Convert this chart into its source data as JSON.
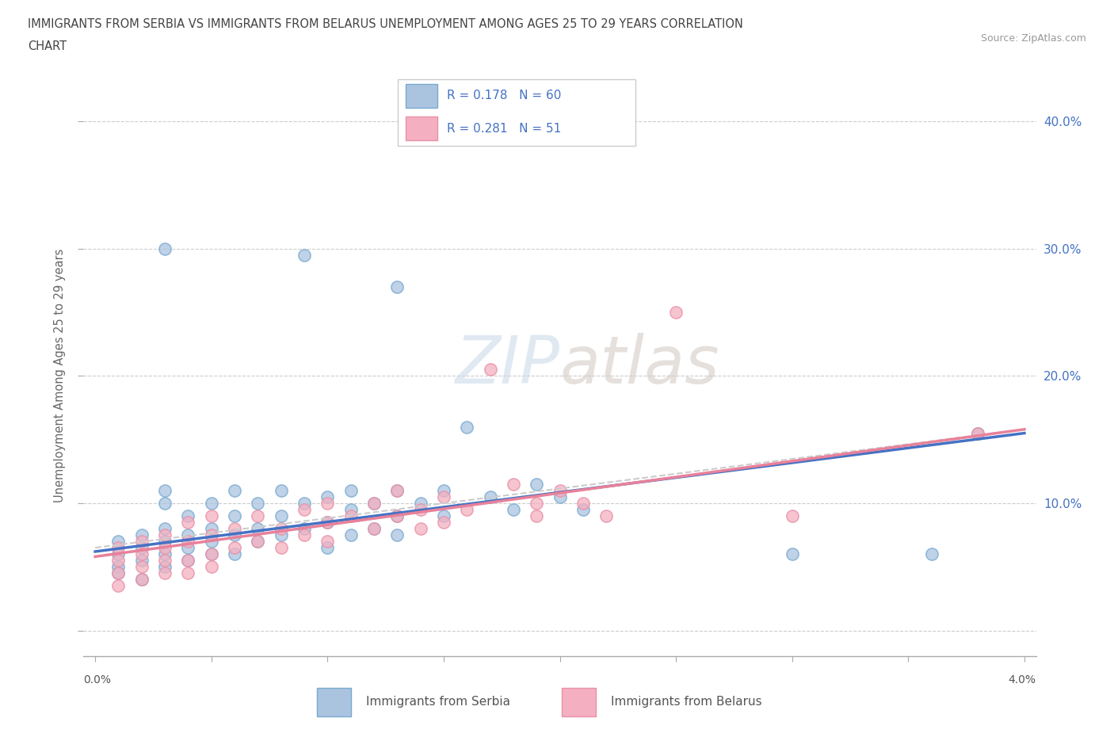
{
  "title_line1": "IMMIGRANTS FROM SERBIA VS IMMIGRANTS FROM BELARUS UNEMPLOYMENT AMONG AGES 25 TO 29 YEARS CORRELATION",
  "title_line2": "CHART",
  "source": "Source: ZipAtlas.com",
  "ylabel": "Unemployment Among Ages 25 to 29 years",
  "serbia_color": "#aac4e0",
  "serbia_edge": "#7aaad0",
  "belarus_color": "#f4b0c0",
  "belarus_edge": "#e890a8",
  "serbia_line_color": "#4472c4",
  "belarus_line_color": "#e8819a",
  "watermark_color": "#dde8f0",
  "serbia_points": [
    [
      0.001,
      0.05
    ],
    [
      0.001,
      0.06
    ],
    [
      0.001,
      0.07
    ],
    [
      0.001,
      0.045
    ],
    [
      0.002,
      0.055
    ],
    [
      0.002,
      0.065
    ],
    [
      0.002,
      0.075
    ],
    [
      0.002,
      0.04
    ],
    [
      0.003,
      0.06
    ],
    [
      0.003,
      0.07
    ],
    [
      0.003,
      0.08
    ],
    [
      0.003,
      0.05
    ],
    [
      0.003,
      0.11
    ],
    [
      0.003,
      0.1
    ],
    [
      0.004,
      0.065
    ],
    [
      0.004,
      0.075
    ],
    [
      0.004,
      0.055
    ],
    [
      0.004,
      0.09
    ],
    [
      0.005,
      0.08
    ],
    [
      0.005,
      0.06
    ],
    [
      0.005,
      0.1
    ],
    [
      0.005,
      0.07
    ],
    [
      0.006,
      0.09
    ],
    [
      0.006,
      0.075
    ],
    [
      0.006,
      0.11
    ],
    [
      0.006,
      0.06
    ],
    [
      0.007,
      0.1
    ],
    [
      0.007,
      0.08
    ],
    [
      0.007,
      0.07
    ],
    [
      0.008,
      0.09
    ],
    [
      0.008,
      0.11
    ],
    [
      0.008,
      0.075
    ],
    [
      0.009,
      0.1
    ],
    [
      0.009,
      0.08
    ],
    [
      0.01,
      0.105
    ],
    [
      0.01,
      0.085
    ],
    [
      0.01,
      0.065
    ],
    [
      0.011,
      0.095
    ],
    [
      0.011,
      0.11
    ],
    [
      0.011,
      0.075
    ],
    [
      0.012,
      0.1
    ],
    [
      0.012,
      0.08
    ],
    [
      0.013,
      0.11
    ],
    [
      0.013,
      0.09
    ],
    [
      0.013,
      0.075
    ],
    [
      0.014,
      0.1
    ],
    [
      0.015,
      0.11
    ],
    [
      0.015,
      0.09
    ],
    [
      0.016,
      0.16
    ],
    [
      0.017,
      0.105
    ],
    [
      0.018,
      0.095
    ],
    [
      0.019,
      0.115
    ],
    [
      0.02,
      0.105
    ],
    [
      0.021,
      0.095
    ],
    [
      0.003,
      0.3
    ],
    [
      0.009,
      0.295
    ],
    [
      0.013,
      0.27
    ],
    [
      0.038,
      0.155
    ],
    [
      0.03,
      0.06
    ],
    [
      0.036,
      0.06
    ]
  ],
  "belarus_points": [
    [
      0.001,
      0.055
    ],
    [
      0.001,
      0.065
    ],
    [
      0.001,
      0.045
    ],
    [
      0.001,
      0.035
    ],
    [
      0.002,
      0.06
    ],
    [
      0.002,
      0.07
    ],
    [
      0.002,
      0.05
    ],
    [
      0.002,
      0.04
    ],
    [
      0.003,
      0.065
    ],
    [
      0.003,
      0.055
    ],
    [
      0.003,
      0.075
    ],
    [
      0.003,
      0.045
    ],
    [
      0.004,
      0.07
    ],
    [
      0.004,
      0.055
    ],
    [
      0.004,
      0.085
    ],
    [
      0.004,
      0.045
    ],
    [
      0.005,
      0.06
    ],
    [
      0.005,
      0.075
    ],
    [
      0.005,
      0.05
    ],
    [
      0.005,
      0.09
    ],
    [
      0.006,
      0.065
    ],
    [
      0.006,
      0.08
    ],
    [
      0.007,
      0.07
    ],
    [
      0.007,
      0.09
    ],
    [
      0.008,
      0.08
    ],
    [
      0.008,
      0.065
    ],
    [
      0.009,
      0.075
    ],
    [
      0.009,
      0.095
    ],
    [
      0.01,
      0.085
    ],
    [
      0.01,
      0.07
    ],
    [
      0.01,
      0.1
    ],
    [
      0.011,
      0.09
    ],
    [
      0.012,
      0.08
    ],
    [
      0.012,
      0.1
    ],
    [
      0.013,
      0.09
    ],
    [
      0.013,
      0.11
    ],
    [
      0.014,
      0.095
    ],
    [
      0.014,
      0.08
    ],
    [
      0.015,
      0.105
    ],
    [
      0.015,
      0.085
    ],
    [
      0.016,
      0.095
    ],
    [
      0.017,
      0.205
    ],
    [
      0.018,
      0.115
    ],
    [
      0.019,
      0.1
    ],
    [
      0.019,
      0.09
    ],
    [
      0.02,
      0.11
    ],
    [
      0.021,
      0.1
    ],
    [
      0.022,
      0.09
    ],
    [
      0.025,
      0.25
    ],
    [
      0.03,
      0.09
    ],
    [
      0.038,
      0.155
    ]
  ]
}
